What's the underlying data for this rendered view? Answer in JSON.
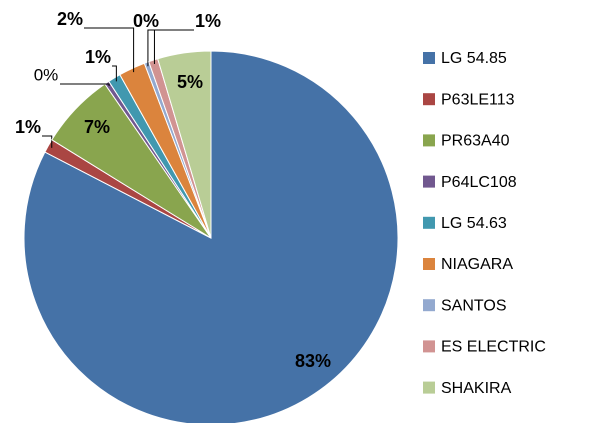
{
  "chart_data": {
    "type": "pie",
    "categories": [
      "LG 54.85",
      "P63LE113",
      "PR63A40",
      "P64LC108",
      "LG 54.63",
      "NIAGARA",
      "SANTOS",
      "ES ELECTRIC",
      "SHAKIRA"
    ],
    "values": [
      82.6,
      1.2,
      6.6,
      0.4,
      1.1,
      2.3,
      0.4,
      0.8,
      4.6
    ],
    "value_labels": [
      "83%",
      "1%",
      "7%",
      "0%",
      "1%",
      "2%",
      "0%",
      "1%",
      "5%"
    ],
    "colors": [
      "#4572a7",
      "#aa4643",
      "#89a54e",
      "#71588f",
      "#4198af",
      "#db843d",
      "#93a9cf",
      "#d19392",
      "#b9cd96"
    ],
    "legend": "right"
  }
}
